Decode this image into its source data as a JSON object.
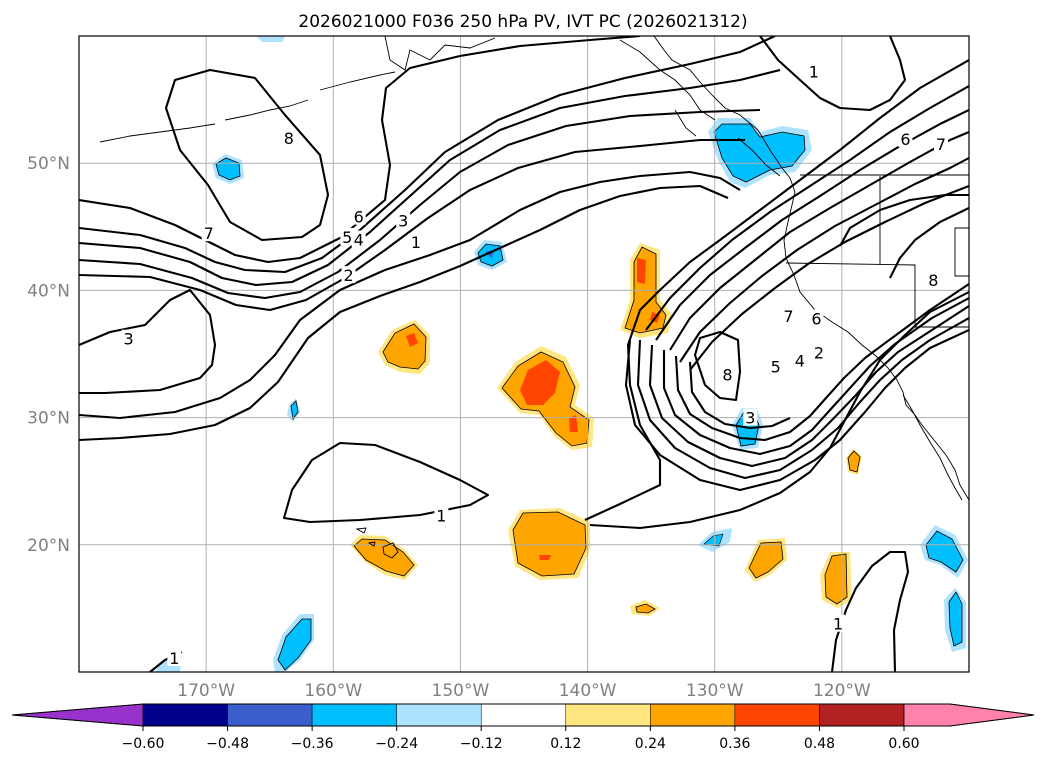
{
  "title": "2026021000 F036 250 hPa PV, IVT PC (2026021312)",
  "map": {
    "lon_min": -180,
    "lon_max": -110,
    "lat_min": 10,
    "lat_max": 60,
    "lat_ticks": [
      {
        "value": 20,
        "label": "20°N"
      },
      {
        "value": 30,
        "label": "30°N"
      },
      {
        "value": 40,
        "label": "40°N"
      },
      {
        "value": 50,
        "label": "50°N"
      }
    ],
    "lon_ticks": [
      {
        "value": -170,
        "label": "170°W"
      },
      {
        "value": -160,
        "label": "160°W"
      },
      {
        "value": -150,
        "label": "150°W"
      },
      {
        "value": -140,
        "label": "140°W"
      },
      {
        "value": -130,
        "label": "130°W"
      },
      {
        "value": -120,
        "label": "120°W"
      }
    ]
  },
  "contour_labels": [
    {
      "text": "8",
      "lon": -163.5,
      "lat": 52.0
    },
    {
      "text": "7",
      "lon": -169.8,
      "lat": 44.5
    },
    {
      "text": "6",
      "lon": -158.0,
      "lat": 45.8
    },
    {
      "text": "5",
      "lon": -158.9,
      "lat": 44.2
    },
    {
      "text": "4",
      "lon": -158.0,
      "lat": 44.0
    },
    {
      "text": "3",
      "lon": -154.5,
      "lat": 45.5
    },
    {
      "text": "2",
      "lon": -158.8,
      "lat": 41.2
    },
    {
      "text": "1",
      "lon": -153.5,
      "lat": 43.8
    },
    {
      "text": "3",
      "lon": -176.1,
      "lat": 36.2
    },
    {
      "text": "1",
      "lon": -151.5,
      "lat": 22.3
    },
    {
      "text": "8",
      "lon": -129.0,
      "lat": 33.4
    },
    {
      "text": "1",
      "lon": -122.2,
      "lat": 57.2
    },
    {
      "text": "6",
      "lon": -115.0,
      "lat": 51.9
    },
    {
      "text": "7",
      "lon": -112.2,
      "lat": 51.5
    },
    {
      "text": "8",
      "lon": -112.8,
      "lat": 40.8
    },
    {
      "text": "7",
      "lon": -124.2,
      "lat": 38.0
    },
    {
      "text": "6",
      "lon": -122.0,
      "lat": 37.8
    },
    {
      "text": "5",
      "lon": -125.2,
      "lat": 34.0
    },
    {
      "text": "4",
      "lon": -123.3,
      "lat": 34.5
    },
    {
      "text": "2",
      "lon": -121.8,
      "lat": 35.1
    },
    {
      "text": "3",
      "lon": -127.2,
      "lat": 30.0
    },
    {
      "text": "1",
      "lon": -120.3,
      "lat": 13.8
    },
    {
      "text": "1",
      "lon": -172.5,
      "lat": 11.1
    }
  ],
  "colorbar": {
    "levels": [
      -0.6,
      -0.48,
      -0.36,
      -0.24,
      -0.12,
      0.12,
      0.24,
      0.36,
      0.48,
      0.6
    ],
    "tick_labels": [
      "−0.60",
      "−0.48",
      "−0.36",
      "−0.24",
      "−0.12",
      "0.12",
      "0.24",
      "0.36",
      "0.48",
      "0.60"
    ],
    "colors": [
      "#9932CC",
      "#00008B",
      "#3A5FCD",
      "#00BFFF",
      "#ADE3FF",
      "#FFFFFF",
      "#FFE680",
      "#FFA500",
      "#FF4500",
      "#B22222",
      "#FF82AB"
    ]
  }
}
